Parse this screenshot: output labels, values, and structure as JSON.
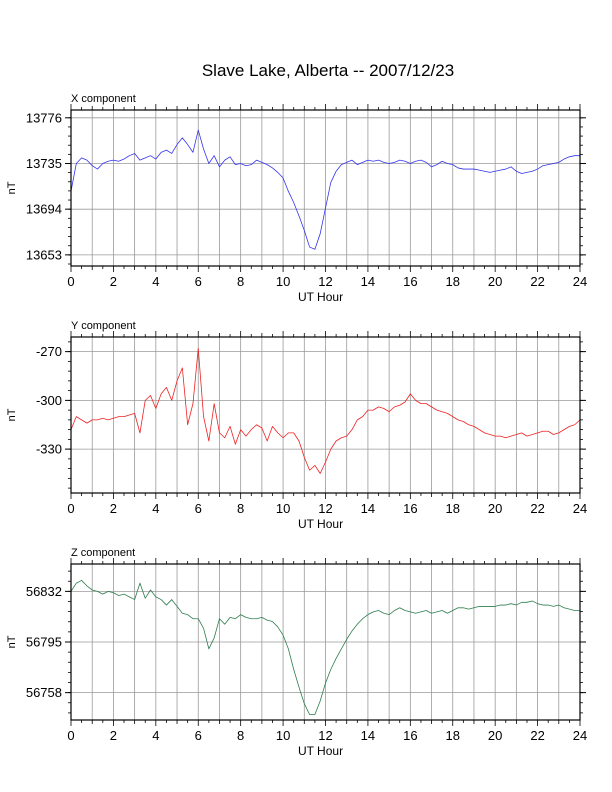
{
  "title": "Slave Lake, Alberta -- 2007/12/23",
  "chart_data": [
    {
      "type": "line",
      "panel_label": "X component",
      "xlabel": "UT Hour",
      "ylabel": "nT",
      "xlim": [
        0,
        24
      ],
      "ylim": [
        13643,
        13783
      ],
      "x_ticks": [
        0,
        2,
        4,
        6,
        8,
        10,
        12,
        14,
        16,
        18,
        20,
        22,
        24
      ],
      "y_ticks": [
        13653,
        13694,
        13735,
        13776
      ],
      "grid": true,
      "color": "#3333ee",
      "x": [
        0,
        0.25,
        0.5,
        0.75,
        1,
        1.25,
        1.5,
        1.75,
        2,
        2.25,
        2.5,
        2.75,
        3,
        3.25,
        3.5,
        3.75,
        4,
        4.25,
        4.5,
        4.75,
        5,
        5.25,
        5.5,
        5.75,
        6,
        6.25,
        6.5,
        6.75,
        7,
        7.25,
        7.5,
        7.75,
        8,
        8.25,
        8.5,
        8.75,
        9,
        9.25,
        9.5,
        9.75,
        10,
        10.25,
        10.5,
        10.75,
        11,
        11.25,
        11.5,
        11.75,
        12,
        12.25,
        12.5,
        12.75,
        13,
        13.25,
        13.5,
        13.75,
        14,
        14.25,
        14.5,
        14.75,
        15,
        15.25,
        15.5,
        15.75,
        16,
        16.25,
        16.5,
        16.75,
        17,
        17.25,
        17.5,
        17.75,
        18,
        18.25,
        18.5,
        18.75,
        19,
        19.25,
        19.5,
        19.75,
        20,
        20.25,
        20.5,
        20.75,
        21,
        21.25,
        21.5,
        21.75,
        22,
        22.25,
        22.5,
        22.75,
        23,
        23.25,
        23.5,
        23.75,
        24
      ],
      "y": [
        13710,
        13735,
        13740,
        13738,
        13733,
        13730,
        13735,
        13737,
        13738,
        13737,
        13739,
        13742,
        13744,
        13738,
        13740,
        13742,
        13739,
        13745,
        13747,
        13744,
        13752,
        13758,
        13752,
        13745,
        13765,
        13748,
        13735,
        13742,
        13732,
        13738,
        13741,
        13734,
        13735,
        13733,
        13734,
        13738,
        13736,
        13734,
        13731,
        13727,
        13722,
        13710,
        13700,
        13688,
        13675,
        13660,
        13658,
        13672,
        13695,
        13718,
        13728,
        13734,
        13736,
        13738,
        13734,
        13736,
        13738,
        13737,
        13738,
        13736,
        13735,
        13736,
        13738,
        13737,
        13735,
        13737,
        13738,
        13736,
        13732,
        13734,
        13737,
        13735,
        13734,
        13731,
        13730,
        13730,
        13730,
        13729,
        13728,
        13727,
        13728,
        13729,
        13730,
        13732,
        13728,
        13726,
        13727,
        13728,
        13730,
        13733,
        13734,
        13735,
        13736,
        13739,
        13741,
        13742,
        13742
      ]
    },
    {
      "type": "line",
      "panel_label": "Y component",
      "xlabel": "UT Hour",
      "ylabel": "nT",
      "xlim": [
        0,
        24
      ],
      "ylim": [
        -357,
        -261
      ],
      "x_ticks": [
        0,
        2,
        4,
        6,
        8,
        10,
        12,
        14,
        16,
        18,
        20,
        22,
        24
      ],
      "y_ticks": [
        -270,
        -300,
        -330
      ],
      "grid": true,
      "color": "#ee2222",
      "x": [
        0,
        0.25,
        0.5,
        0.75,
        1,
        1.25,
        1.5,
        1.75,
        2,
        2.25,
        2.5,
        2.75,
        3,
        3.25,
        3.5,
        3.75,
        4,
        4.25,
        4.5,
        4.75,
        5,
        5.25,
        5.5,
        5.75,
        6,
        6.25,
        6.5,
        6.75,
        7,
        7.25,
        7.5,
        7.75,
        8,
        8.25,
        8.5,
        8.75,
        9,
        9.25,
        9.5,
        9.75,
        10,
        10.25,
        10.5,
        10.75,
        11,
        11.25,
        11.5,
        11.75,
        12,
        12.25,
        12.5,
        12.75,
        13,
        13.25,
        13.5,
        13.75,
        14,
        14.25,
        14.5,
        14.75,
        15,
        15.25,
        15.5,
        15.75,
        16,
        16.25,
        16.5,
        16.75,
        17,
        17.25,
        17.5,
        17.75,
        18,
        18.25,
        18.5,
        18.75,
        19,
        19.25,
        19.5,
        19.75,
        20,
        20.25,
        20.5,
        20.75,
        21,
        21.25,
        21.5,
        21.75,
        22,
        22.25,
        22.5,
        22.75,
        23,
        23.25,
        23.5,
        23.75,
        24
      ],
      "y": [
        -318,
        -310,
        -312,
        -314,
        -312,
        -312,
        -311,
        -312,
        -311,
        -310,
        -310,
        -309,
        -308,
        -320,
        -300,
        -297,
        -305,
        -296,
        -292,
        -300,
        -288,
        -280,
        -315,
        -302,
        -268,
        -310,
        -325,
        -302,
        -320,
        -323,
        -316,
        -327,
        -318,
        -322,
        -318,
        -315,
        -317,
        -325,
        -316,
        -320,
        -323,
        -320,
        -320,
        -325,
        -335,
        -343,
        -340,
        -345,
        -338,
        -330,
        -325,
        -323,
        -322,
        -318,
        -312,
        -310,
        -306,
        -306,
        -304,
        -305,
        -307,
        -304,
        -303,
        -301,
        -296,
        -300,
        -302,
        -302,
        -304,
        -306,
        -307,
        -308,
        -310,
        -312,
        -313,
        -315,
        -316,
        -318,
        -320,
        -321,
        -322,
        -322,
        -323,
        -322,
        -321,
        -320,
        -322,
        -321,
        -320,
        -319,
        -319,
        -321,
        -320,
        -318,
        -316,
        -315,
        -312
      ]
    },
    {
      "type": "line",
      "panel_label": "Z component",
      "xlabel": "UT Hour",
      "ylabel": "nT",
      "xlim": [
        0,
        24
      ],
      "ylim": [
        56738,
        56852
      ],
      "x_ticks": [
        0,
        2,
        4,
        6,
        8,
        10,
        12,
        14,
        16,
        18,
        20,
        22,
        24
      ],
      "y_ticks": [
        56758,
        56795,
        56832
      ],
      "grid": true,
      "color": "#2e7d4e",
      "x": [
        0,
        0.25,
        0.5,
        0.75,
        1,
        1.25,
        1.5,
        1.75,
        2,
        2.25,
        2.5,
        2.75,
        3,
        3.25,
        3.5,
        3.75,
        4,
        4.25,
        4.5,
        4.75,
        5,
        5.25,
        5.5,
        5.75,
        6,
        6.25,
        6.5,
        6.75,
        7,
        7.25,
        7.5,
        7.75,
        8,
        8.25,
        8.5,
        8.75,
        9,
        9.25,
        9.5,
        9.75,
        10,
        10.25,
        10.5,
        10.75,
        11,
        11.25,
        11.5,
        11.75,
        12,
        12.25,
        12.5,
        12.75,
        13,
        13.25,
        13.5,
        13.75,
        14,
        14.25,
        14.5,
        14.75,
        15,
        15.25,
        15.5,
        15.75,
        16,
        16.25,
        16.5,
        16.75,
        17,
        17.25,
        17.5,
        17.75,
        18,
        18.25,
        18.5,
        18.75,
        19,
        19.25,
        19.5,
        19.75,
        20,
        20.25,
        20.5,
        20.75,
        21,
        21.25,
        21.5,
        21.75,
        22,
        22.25,
        22.5,
        22.75,
        23,
        23.25,
        23.5,
        23.75,
        24
      ],
      "y": [
        56832,
        56838,
        56840,
        56836,
        56833,
        56832,
        56830,
        56832,
        56831,
        56829,
        56830,
        56828,
        56826,
        56838,
        56827,
        56833,
        56828,
        56826,
        56822,
        56826,
        56821,
        56816,
        56815,
        56812,
        56812,
        56805,
        56790,
        56798,
        56812,
        56808,
        56813,
        56812,
        56815,
        56813,
        56812,
        56812,
        56813,
        56811,
        56810,
        56806,
        56800,
        56790,
        56775,
        56762,
        56750,
        56742,
        56742,
        56752,
        56765,
        56775,
        56783,
        56790,
        56797,
        56803,
        56808,
        56812,
        56815,
        56817,
        56818,
        56816,
        56815,
        56818,
        56820,
        56818,
        56817,
        56816,
        56817,
        56818,
        56816,
        56817,
        56818,
        56816,
        56818,
        56820,
        56820,
        56819,
        56820,
        56821,
        56821,
        56821,
        56821,
        56822,
        56822,
        56823,
        56822,
        56824,
        56824,
        56825,
        56823,
        56822,
        56822,
        56821,
        56822,
        56820,
        56819,
        56818,
        56818
      ]
    }
  ]
}
